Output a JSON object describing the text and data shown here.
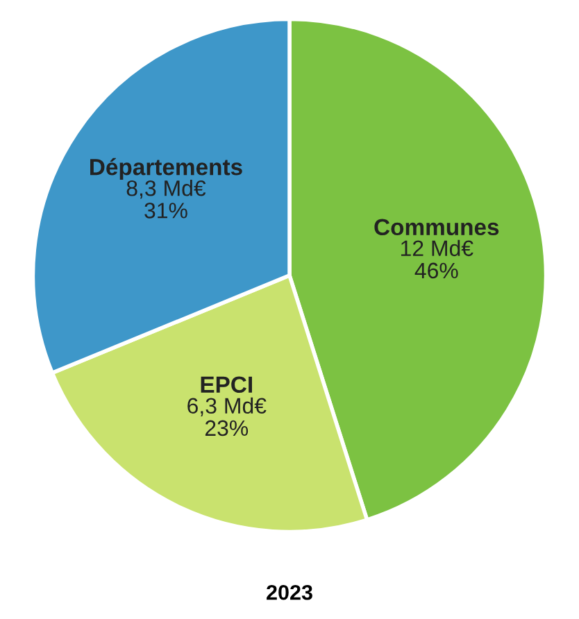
{
  "chart_data": {
    "type": "pie",
    "title": "2023",
    "categories": [
      "Communes",
      "EPCI",
      "Départements"
    ],
    "values": [
      12,
      6.3,
      8.3
    ],
    "value_labels": [
      "12 Md€\n46%",
      "6,3 Md€\n23%",
      "8,3 Md€\n31%"
    ],
    "colors": [
      "#7cc242",
      "#c9e26e",
      "#3e97c9"
    ]
  }
}
